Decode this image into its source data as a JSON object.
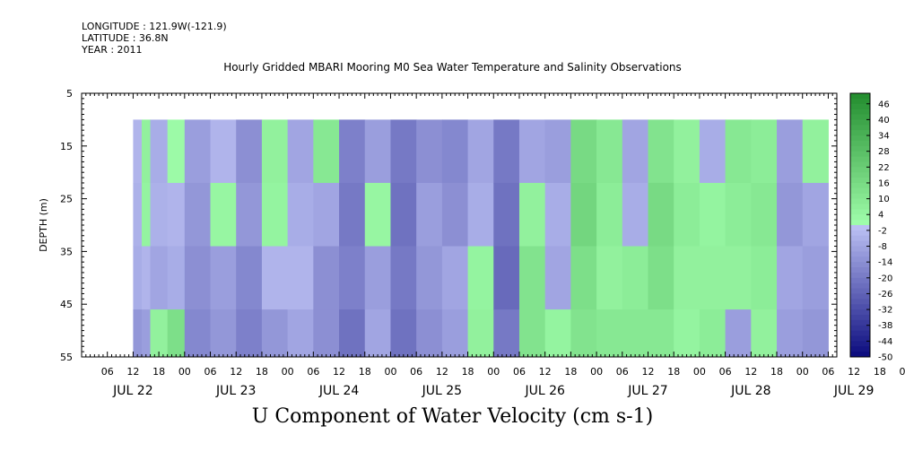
{
  "header": {
    "longitude": "LONGITUDE : 121.9W(-121.9)",
    "latitude": "LATITUDE : 36.8N",
    "year": "YEAR : 2011",
    "title": "Hourly Gridded MBARI Mooring M0 Sea Water Temperature and Salinity Observations",
    "variable": "U Component of Water Velocity (cm s-1)"
  },
  "chart_data": {
    "type": "heatmap",
    "title": "Hourly Gridded MBARI Mooring M0 Sea Water Temperature and Salinity Observations",
    "xlabel": "",
    "ylabel": "DEPTH (m)",
    "variable": "U Component of Water Velocity (cm s-1)",
    "x_range_hours": [
      0,
      176
    ],
    "data_x_range_hours": [
      12,
      174
    ],
    "ylim": [
      55,
      5
    ],
    "data_y_range": [
      10,
      55
    ],
    "y_ticks": [
      5,
      15,
      25,
      35,
      45,
      55
    ],
    "x_hour_ticks": [
      "06",
      "12",
      "18",
      "00",
      "06",
      "12",
      "18",
      "00",
      "06",
      "12",
      "18",
      "00",
      "06",
      "12",
      "18",
      "00",
      "06",
      "12",
      "18",
      "00",
      "06",
      "12",
      "18",
      "00",
      "06",
      "12",
      "18",
      "00",
      "06",
      "12",
      "18",
      "00"
    ],
    "x_day_labels": [
      "JUL 22",
      "JUL 23",
      "JUL 24",
      "JUL 25",
      "JUL 26",
      "JUL 27",
      "JUL 28",
      "JUL 29"
    ],
    "colorbar": {
      "labels": [
        "46",
        "40",
        "34",
        "28",
        "22",
        "16",
        "10",
        "4",
        "-2",
        "-8",
        "-14",
        "-20",
        "-26",
        "-32",
        "-38",
        "-44",
        "-50"
      ],
      "range": [
        -50,
        50
      ]
    },
    "columns": [
      {
        "start_hour": 12,
        "end_hour": 14,
        "values": [
          -4,
          -5,
          -6,
          -12
        ]
      },
      {
        "start_hour": 14,
        "end_hour": 16,
        "values": [
          6,
          5,
          -4,
          -10
        ]
      },
      {
        "start_hour": 16,
        "end_hour": 20,
        "values": [
          -6,
          -5,
          -8,
          6
        ]
      },
      {
        "start_hour": 20,
        "end_hour": 24,
        "values": [
          2,
          -4,
          -6,
          14
        ]
      },
      {
        "start_hour": 24,
        "end_hour": 30,
        "values": [
          -10,
          -12,
          -14,
          -16
        ]
      },
      {
        "start_hour": 30,
        "end_hour": 36,
        "values": [
          -4,
          4,
          -10,
          -12
        ]
      },
      {
        "start_hour": 36,
        "end_hour": 42,
        "values": [
          -14,
          -12,
          -16,
          -18
        ]
      },
      {
        "start_hour": 42,
        "end_hour": 48,
        "values": [
          6,
          5,
          -4,
          -12
        ]
      },
      {
        "start_hour": 48,
        "end_hour": 54,
        "values": [
          -8,
          -6,
          -4,
          -8
        ]
      },
      {
        "start_hour": 54,
        "end_hour": 60,
        "values": [
          10,
          -8,
          -14,
          -14
        ]
      },
      {
        "start_hour": 60,
        "end_hour": 66,
        "values": [
          -18,
          -20,
          -18,
          -22
        ]
      },
      {
        "start_hour": 66,
        "end_hour": 72,
        "values": [
          -10,
          4,
          -10,
          -8
        ]
      },
      {
        "start_hour": 72,
        "end_hour": 78,
        "values": [
          -20,
          -22,
          -20,
          -22
        ]
      },
      {
        "start_hour": 78,
        "end_hour": 84,
        "values": [
          -14,
          -10,
          -12,
          -14
        ]
      },
      {
        "start_hour": 84,
        "end_hour": 90,
        "values": [
          -16,
          -14,
          -8,
          -10
        ]
      },
      {
        "start_hour": 90,
        "end_hour": 96,
        "values": [
          -8,
          -6,
          5,
          6
        ]
      },
      {
        "start_hour": 96,
        "end_hour": 102,
        "values": [
          -20,
          -22,
          -24,
          -20
        ]
      },
      {
        "start_hour": 102,
        "end_hour": 108,
        "values": [
          -8,
          6,
          12,
          12
        ]
      },
      {
        "start_hour": 108,
        "end_hour": 114,
        "values": [
          -10,
          -6,
          -8,
          5
        ]
      },
      {
        "start_hour": 114,
        "end_hour": 120,
        "values": [
          16,
          18,
          14,
          12
        ]
      },
      {
        "start_hour": 120,
        "end_hour": 126,
        "values": [
          10,
          8,
          6,
          10
        ]
      },
      {
        "start_hour": 126,
        "end_hour": 132,
        "values": [
          -8,
          -6,
          8,
          10
        ]
      },
      {
        "start_hour": 132,
        "end_hour": 138,
        "values": [
          12,
          16,
          14,
          10
        ]
      },
      {
        "start_hour": 138,
        "end_hour": 144,
        "values": [
          6,
          8,
          6,
          5
        ]
      },
      {
        "start_hour": 144,
        "end_hour": 150,
        "values": [
          -6,
          5,
          6,
          8
        ]
      },
      {
        "start_hour": 150,
        "end_hour": 156,
        "values": [
          10,
          8,
          6,
          -10
        ]
      },
      {
        "start_hour": 156,
        "end_hour": 162,
        "values": [
          8,
          10,
          8,
          6
        ]
      },
      {
        "start_hour": 162,
        "end_hour": 168,
        "values": [
          -10,
          -12,
          -8,
          -10
        ]
      },
      {
        "start_hour": 168,
        "end_hour": 174,
        "values": [
          6,
          -8,
          -10,
          -12
        ]
      }
    ],
    "depth_bands": [
      10,
      22,
      34,
      46,
      55
    ],
    "legend": "right"
  }
}
